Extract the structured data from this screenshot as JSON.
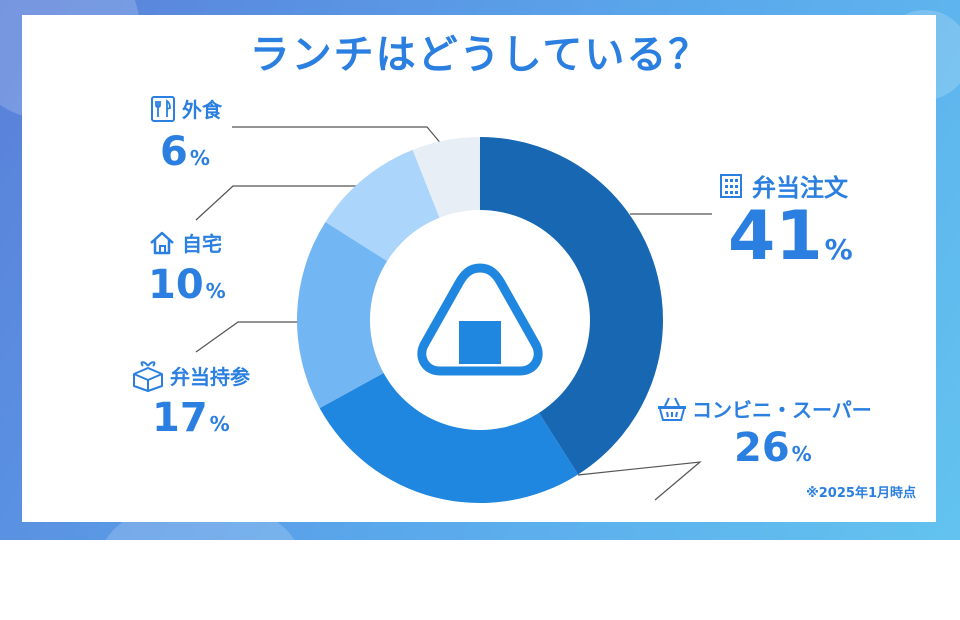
{
  "title": "ランチはどうしている？",
  "note": "※2025年1月時点",
  "colors": {
    "accent": "#2a7fe0",
    "leader": "#555555"
  },
  "chart_data": {
    "type": "pie",
    "title": "ランチはどうしている？",
    "categories": [
      "弁当注文",
      "コンビニ・スーパー",
      "弁当持参",
      "自宅",
      "外食"
    ],
    "values": [
      41,
      26,
      17,
      10,
      6
    ],
    "unit": "%",
    "colors": [
      "#1767b3",
      "#1f87e0",
      "#72b6f3",
      "#acd5fb",
      "#e8eef5"
    ],
    "icons": [
      "building-icon",
      "basket-icon",
      "lunchbox-icon",
      "house-icon",
      "fork-knife-icon"
    ],
    "center_icon": "onigiri-icon"
  }
}
